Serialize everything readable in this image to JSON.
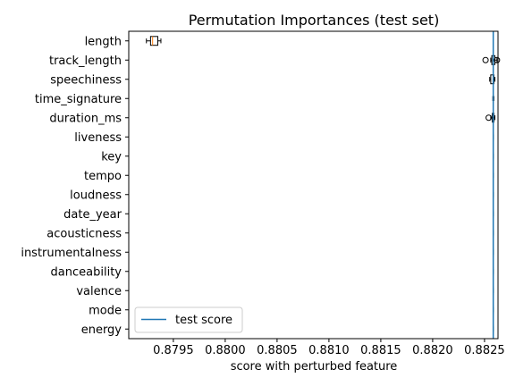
{
  "chart_data": {
    "type": "boxplot",
    "title": "Permutation Importances (test set)",
    "xlabel": "score with perturbed feature",
    "ylabel": "",
    "xlim": [
      0.87907,
      0.88263
    ],
    "xticks": [
      0.8795,
      0.88,
      0.8805,
      0.881,
      0.8815,
      0.882,
      0.8825
    ],
    "xtick_labels": [
      "0.8795",
      "0.8800",
      "0.8805",
      "0.8810",
      "0.8815",
      "0.8820",
      "0.8825"
    ],
    "grid": false,
    "legend_position": "lower-left",
    "reference_line": {
      "name": "test score",
      "value": 0.882584,
      "color": "#1f77b4"
    },
    "box_color": "#000000",
    "median_color": "#ff7f0e",
    "features": [
      {
        "name": "length",
        "whisker_low": 0.87924,
        "q1": 0.87928,
        "median": 0.8793,
        "q3": 0.87935,
        "whisker_high": 0.87938,
        "outliers": []
      },
      {
        "name": "track_length",
        "whisker_low": 0.88256,
        "q1": 0.88257,
        "median": 0.882584,
        "q3": 0.8826,
        "whisker_high": 0.88262,
        "outliers": [
          0.88251,
          0.88262
        ]
      },
      {
        "name": "speechiness",
        "whisker_low": 0.88255,
        "q1": 0.88256,
        "median": 0.882584,
        "q3": 0.88259,
        "whisker_high": 0.8826,
        "outliers": []
      },
      {
        "name": "time_signature",
        "whisker_low": 0.88258,
        "q1": 0.882584,
        "median": 0.882584,
        "q3": 0.882584,
        "whisker_high": 0.88259,
        "outliers": []
      },
      {
        "name": "duration_ms",
        "whisker_low": 0.88256,
        "q1": 0.882575,
        "median": 0.882584,
        "q3": 0.88259,
        "whisker_high": 0.8826,
        "outliers": [
          0.88254
        ]
      },
      {
        "name": "liveness",
        "whisker_low": 0.882584,
        "q1": 0.882584,
        "median": 0.882584,
        "q3": 0.882584,
        "whisker_high": 0.882584,
        "outliers": []
      },
      {
        "name": "key",
        "whisker_low": 0.882584,
        "q1": 0.882584,
        "median": 0.882584,
        "q3": 0.882584,
        "whisker_high": 0.882584,
        "outliers": []
      },
      {
        "name": "tempo",
        "whisker_low": 0.882584,
        "q1": 0.882584,
        "median": 0.882584,
        "q3": 0.882584,
        "whisker_high": 0.882584,
        "outliers": []
      },
      {
        "name": "loudness",
        "whisker_low": 0.882584,
        "q1": 0.882584,
        "median": 0.882584,
        "q3": 0.882584,
        "whisker_high": 0.882584,
        "outliers": []
      },
      {
        "name": "date_year",
        "whisker_low": 0.882584,
        "q1": 0.882584,
        "median": 0.882584,
        "q3": 0.882584,
        "whisker_high": 0.882584,
        "outliers": []
      },
      {
        "name": "acousticness",
        "whisker_low": 0.882584,
        "q1": 0.882584,
        "median": 0.882584,
        "q3": 0.882584,
        "whisker_high": 0.882584,
        "outliers": []
      },
      {
        "name": "instrumentalness",
        "whisker_low": 0.882584,
        "q1": 0.882584,
        "median": 0.882584,
        "q3": 0.882584,
        "whisker_high": 0.882584,
        "outliers": []
      },
      {
        "name": "danceability",
        "whisker_low": 0.882584,
        "q1": 0.882584,
        "median": 0.882584,
        "q3": 0.882584,
        "whisker_high": 0.882584,
        "outliers": []
      },
      {
        "name": "valence",
        "whisker_low": 0.882584,
        "q1": 0.882584,
        "median": 0.882584,
        "q3": 0.882584,
        "whisker_high": 0.882584,
        "outliers": []
      },
      {
        "name": "mode",
        "whisker_low": 0.882584,
        "q1": 0.882584,
        "median": 0.882584,
        "q3": 0.882584,
        "whisker_high": 0.882584,
        "outliers": []
      },
      {
        "name": "energy",
        "whisker_low": 0.882584,
        "q1": 0.882584,
        "median": 0.882584,
        "q3": 0.882584,
        "whisker_high": 0.882584,
        "outliers": []
      }
    ]
  }
}
